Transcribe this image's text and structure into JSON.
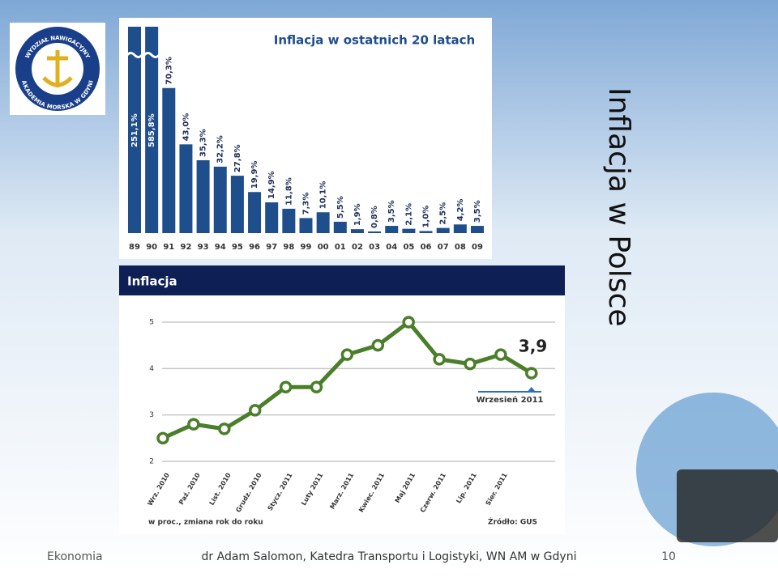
{
  "slide": {
    "title": "Inflacja w Polsce",
    "footer_left": "Ekonomia",
    "footer_center": "dr Adam Salomon, Katedra Transportu i Logistyki, WN AM w Gdyni",
    "page_number": "10",
    "logo_top": "WYDZIAŁ NAWIGACYJNY",
    "logo_bottom": "AKADEMIA MORSKA W GDYNI"
  },
  "chart_data": [
    {
      "type": "bar",
      "title": "Inflacja w ostatnich 20 latach",
      "color": "#1f4e8c",
      "categories": [
        "89",
        "90",
        "91",
        "92",
        "93",
        "94",
        "95",
        "96",
        "97",
        "98",
        "99",
        "00",
        "01",
        "02",
        "03",
        "04",
        "05",
        "06",
        "07",
        "08",
        "09"
      ],
      "values": [
        251.1,
        585.8,
        70.3,
        43.0,
        35.3,
        32.2,
        27.8,
        19.9,
        14.9,
        11.8,
        7.3,
        10.1,
        5.5,
        1.9,
        0.8,
        3.5,
        2.1,
        1.0,
        2.5,
        4.2,
        3.5
      ],
      "value_labels": [
        "251,1%",
        "585,8%",
        "70,3%",
        "43,0%",
        "35,3%",
        "32,2%",
        "27,8%",
        "19,9%",
        "14,9%",
        "11,8%",
        "7,3%",
        "10,1%",
        "5,5%",
        "1,9%",
        "0,8%",
        "3,5%",
        "2,1%",
        "1,0%",
        "2,5%",
        "4,2%",
        "3,5%"
      ]
    },
    {
      "type": "line",
      "title": "Inflacja",
      "color": "#4a7f2a",
      "categories": [
        "Wrz. 2010",
        "Paź. 2010",
        "List. 2010",
        "Grudz. 2010",
        "Stycz. 2011",
        "Luty 2011",
        "Marz. 2011",
        "Kwiec. 2011",
        "Maj 2011",
        "Czerw. 2011",
        "Lip. 2011",
        "Sier. 2011",
        null
      ],
      "values": [
        2.5,
        2.8,
        2.7,
        3.1,
        3.6,
        3.6,
        4.3,
        4.5,
        5.0,
        4.2,
        4.1,
        4.3,
        3.9
      ],
      "value_labels": [
        null,
        null,
        null,
        null,
        null,
        null,
        null,
        null,
        null,
        null,
        null,
        null,
        "3,9"
      ],
      "ylim": [
        2,
        5
      ],
      "yticks": [
        2,
        3,
        4,
        5
      ],
      "grid": true,
      "annotation": "Wrzesień 2011",
      "note": "w proc., zmiana rok do roku",
      "source": "Źródło: GUS"
    }
  ]
}
